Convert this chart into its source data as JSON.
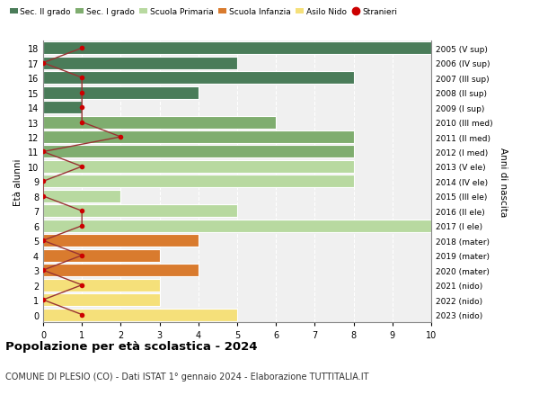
{
  "ages": [
    18,
    17,
    16,
    15,
    14,
    13,
    12,
    11,
    10,
    9,
    8,
    7,
    6,
    5,
    4,
    3,
    2,
    1,
    0
  ],
  "years": [
    "2005 (V sup)",
    "2006 (IV sup)",
    "2007 (III sup)",
    "2008 (II sup)",
    "2009 (I sup)",
    "2010 (III med)",
    "2011 (II med)",
    "2012 (I med)",
    "2013 (V ele)",
    "2014 (IV ele)",
    "2015 (III ele)",
    "2016 (II ele)",
    "2017 (I ele)",
    "2018 (mater)",
    "2019 (mater)",
    "2020 (mater)",
    "2021 (nido)",
    "2022 (nido)",
    "2023 (nido)"
  ],
  "bar_values": [
    10,
    5,
    8,
    4,
    1,
    6,
    8,
    8,
    8,
    8,
    2,
    5,
    10,
    4,
    3,
    4,
    3,
    3,
    5
  ],
  "stranieri": [
    1,
    0,
    1,
    1,
    1,
    1,
    2,
    0,
    1,
    0,
    0,
    1,
    1,
    0,
    1,
    0,
    1,
    0,
    1
  ],
  "bar_colors": [
    "#4a7c59",
    "#4a7c59",
    "#4a7c59",
    "#4a7c59",
    "#4a7c59",
    "#7fad6f",
    "#7fad6f",
    "#7fad6f",
    "#b8d9a0",
    "#b8d9a0",
    "#b8d9a0",
    "#b8d9a0",
    "#b8d9a0",
    "#d97b2e",
    "#d97b2e",
    "#d97b2e",
    "#f5e07a",
    "#f5e07a",
    "#f5e07a"
  ],
  "legend_labels": [
    "Sec. II grado",
    "Sec. I grado",
    "Scuola Primaria",
    "Scuola Infanzia",
    "Asilo Nido",
    "Stranieri"
  ],
  "legend_colors": [
    "#4a7c59",
    "#7fad6f",
    "#b8d9a0",
    "#d97b2e",
    "#f5e07a",
    "#cc0000"
  ],
  "stranieri_color": "#cc0000",
  "stranieri_line_color": "#993333",
  "ylabel_left": "Età alunni",
  "ylabel_right": "Anni di nascita",
  "title": "Popolazione per età scolastica - 2024",
  "subtitle": "COMUNE DI PLESIO (CO) - Dati ISTAT 1° gennaio 2024 - Elaborazione TUTTITALIA.IT",
  "xlim": [
    0,
    10
  ],
  "xticks": [
    0,
    1,
    2,
    3,
    4,
    5,
    6,
    7,
    8,
    9,
    10
  ],
  "bg_color": "#ffffff",
  "plot_bg_color": "#f0f0f0",
  "grid_color": "#ffffff"
}
